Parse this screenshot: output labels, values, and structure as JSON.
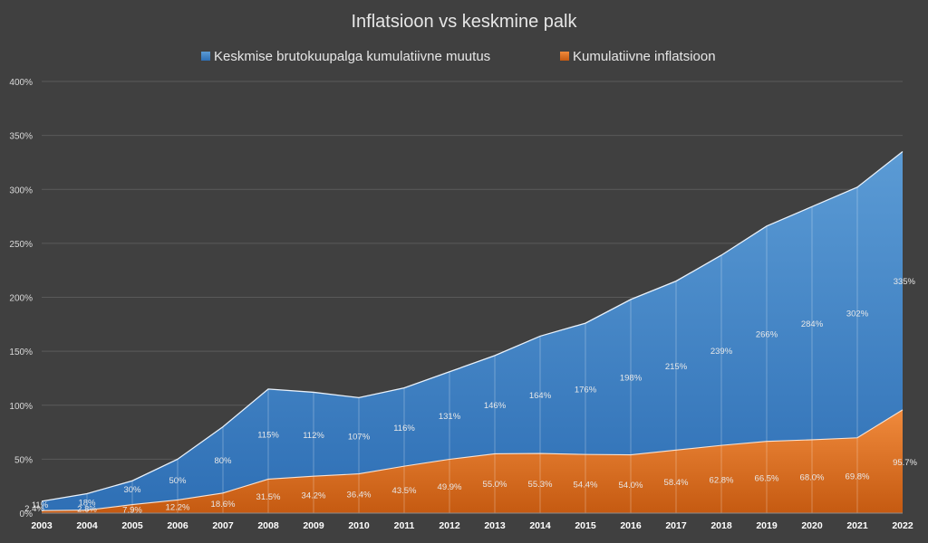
{
  "chart_data": {
    "type": "area",
    "title": "Inflatsioon vs keskmine palk",
    "xlabel": "",
    "ylabel": "",
    "categories": [
      "2003",
      "2004",
      "2005",
      "2006",
      "2007",
      "2008",
      "2009",
      "2010",
      "2011",
      "2012",
      "2013",
      "2014",
      "2015",
      "2016",
      "2017",
      "2018",
      "2019",
      "2020",
      "2021",
      "2022"
    ],
    "ylim": [
      0,
      400
    ],
    "yticks": [
      0,
      50,
      100,
      150,
      200,
      250,
      300,
      350,
      400
    ],
    "ytick_labels": [
      "0%",
      "50%",
      "100%",
      "150%",
      "200%",
      "250%",
      "300%",
      "350%",
      "400%"
    ],
    "grid": true,
    "legend_position": "top",
    "series": [
      {
        "name": "Keskmise brutokuupalga kumulatiivne muutus",
        "color": "#5b9bd5",
        "values": [
          11,
          18,
          30,
          50,
          80,
          115,
          112,
          107,
          116,
          131,
          146,
          164,
          176,
          198,
          215,
          239,
          266,
          284,
          302,
          335
        ],
        "labels": [
          "11%",
          "18%",
          "30%",
          "50%",
          "80%",
          "115%",
          "112%",
          "107%",
          "116%",
          "131%",
          "146%",
          "164%",
          "176%",
          "198%",
          "215%",
          "239%",
          "266%",
          "284%",
          "302%",
          "335%"
        ]
      },
      {
        "name": "Kumulatiivne inflatsioon",
        "color": "#ed7d31",
        "values": [
          2.4,
          2.8,
          7.9,
          12.2,
          18.6,
          31.5,
          34.2,
          36.4,
          43.5,
          49.9,
          55.0,
          55.3,
          54.4,
          54.0,
          58.4,
          62.8,
          66.5,
          68.0,
          69.8,
          95.7
        ],
        "labels": [
          "2.4%",
          "2.8%",
          "7.9%",
          "12.2%",
          "18.6%",
          "31.5%",
          "34.2%",
          "36.4%",
          "43.5%",
          "49.9%",
          "55.0%",
          "55.3%",
          "54.4%",
          "54.0%",
          "58.4%",
          "62.8%",
          "66.5%",
          "68.0%",
          "69.8%",
          "95.7%"
        ]
      }
    ]
  }
}
